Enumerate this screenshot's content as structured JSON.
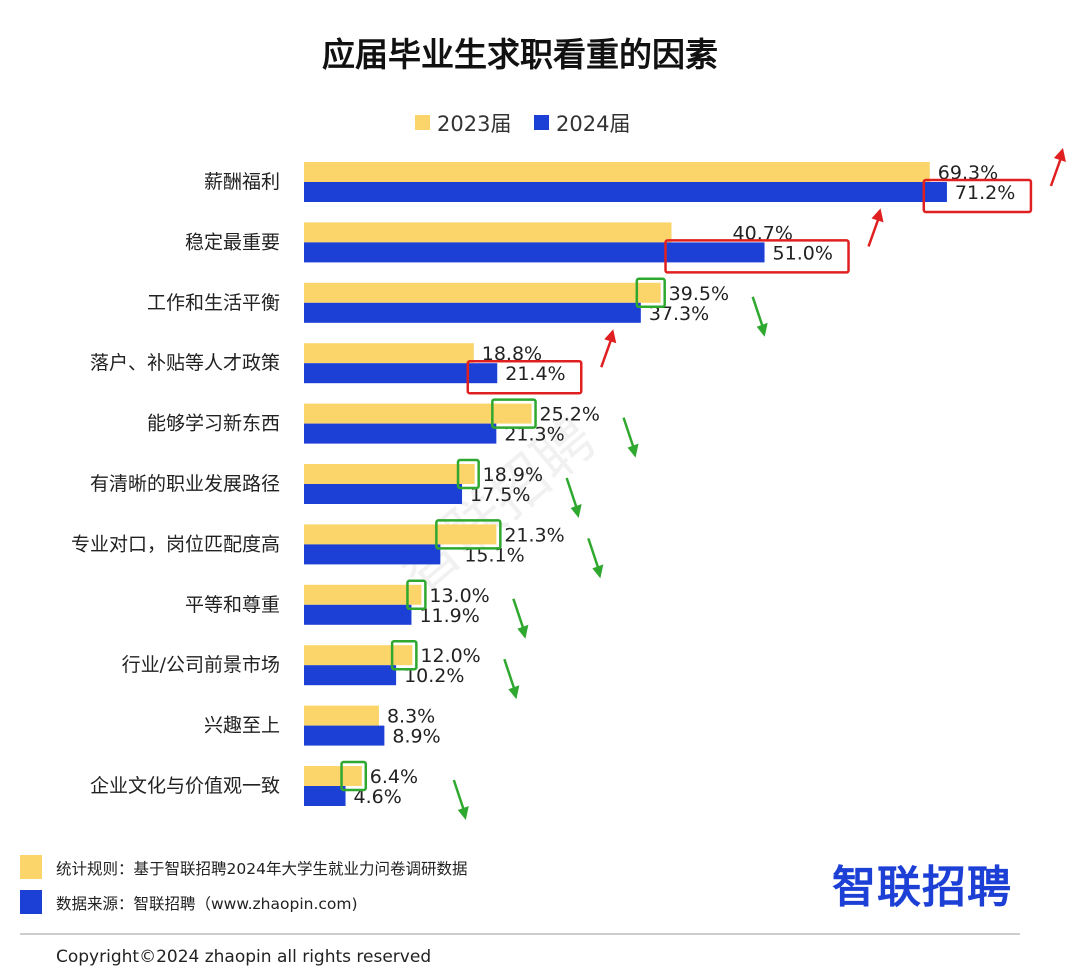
{
  "title": "应届毕业生求职看重的因素",
  "colors": {
    "series_2023": "#fbd56a",
    "series_2024": "#1c3fd6",
    "highlight_up": "#e02020",
    "highlight_down": "#2fa82f"
  },
  "chart_data": {
    "type": "bar",
    "orientation": "horizontal",
    "title": "应届毕业生求职看重的因素",
    "xlabel": "",
    "ylabel": "",
    "xlim": [
      0,
      80
    ],
    "grid": false,
    "legend_position": "top-center",
    "categories": [
      "薪酬福利",
      "稳定最重要",
      "工作和生活平衡",
      "落户、补贴等人才政策",
      "能够学习新东西",
      "有清晰的职业发展路径",
      "专业对口，岗位匹配度高",
      "平等和尊重",
      "行业/公司前景市场",
      "兴趣至上",
      "企业文化与价值观一致"
    ],
    "series": [
      {
        "name": "2023届",
        "values": [
          69.3,
          40.7,
          39.5,
          18.8,
          25.2,
          18.9,
          21.3,
          13.0,
          12.0,
          8.3,
          6.4
        ],
        "labels": [
          "69.3%",
          "40.7%",
          "39.5%",
          "18.8%",
          "25.2%",
          "18.9%",
          "21.3%",
          "13.0%",
          "12.0%",
          "8.3%",
          "6.4%"
        ]
      },
      {
        "name": "2024届",
        "values": [
          71.2,
          51.0,
          37.3,
          21.4,
          21.3,
          17.5,
          15.1,
          11.9,
          10.2,
          8.9,
          4.6
        ],
        "labels": [
          "71.2%",
          "51.0%",
          "37.3%",
          "21.4%",
          "21.3%",
          "17.5%",
          "15.1%",
          "11.9%",
          "10.2%",
          "8.9%",
          "4.6%"
        ]
      }
    ],
    "annotations": [
      {
        "category": "薪酬福利",
        "trend": "up"
      },
      {
        "category": "稳定最重要",
        "trend": "up"
      },
      {
        "category": "工作和生活平衡",
        "trend": "down"
      },
      {
        "category": "落户、补贴等人才政策",
        "trend": "up"
      },
      {
        "category": "能够学习新东西",
        "trend": "down"
      },
      {
        "category": "有清晰的职业发展路径",
        "trend": "down"
      },
      {
        "category": "专业对口，岗位匹配度高",
        "trend": "down"
      },
      {
        "category": "平等和尊重",
        "trend": "down"
      },
      {
        "category": "行业/公司前景市场",
        "trend": "down"
      },
      {
        "category": "兴趣至上",
        "trend": "none"
      },
      {
        "category": "企业文化与价值观一致",
        "trend": "down"
      }
    ]
  },
  "watermark": "智联招聘",
  "footer": {
    "rule": "统计规则：基于智联招聘2024年大学生就业力问卷调研数据",
    "source": "数据来源：智联招聘（www.zhaopin.com)",
    "brand": "智联招聘",
    "copyright": "Copyright©2024 zhaopin all rights reserved"
  }
}
